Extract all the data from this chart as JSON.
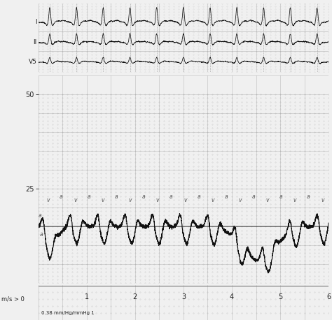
{
  "bg_color": "#f0f0f0",
  "grid_dot_color": "#b0b0b0",
  "grid_major_color": "#888888",
  "ecg_color": "#111111",
  "pressure_color": "#111111",
  "baseline_color": "#111111",
  "annot_color": "#555555",
  "label_color": "#222222",
  "fig_width": 4.74,
  "fig_height": 4.58,
  "dpi": 100,
  "ecg_labels": [
    "I",
    "II",
    "V5"
  ],
  "bottom_left_label": "m/s > 0",
  "bottom_sub_label": "0.38 mm/Hg/mmHg 1",
  "x_tick_labels": [
    "1",
    "2",
    "3",
    "4",
    "5",
    "6"
  ],
  "pressure_yticks": [
    25,
    50
  ],
  "n_beats": 11,
  "baseline_pressure": 15.0,
  "pressure_ylim": [
    0,
    55
  ],
  "ecg_ylim": [
    -0.4,
    3.0
  ]
}
